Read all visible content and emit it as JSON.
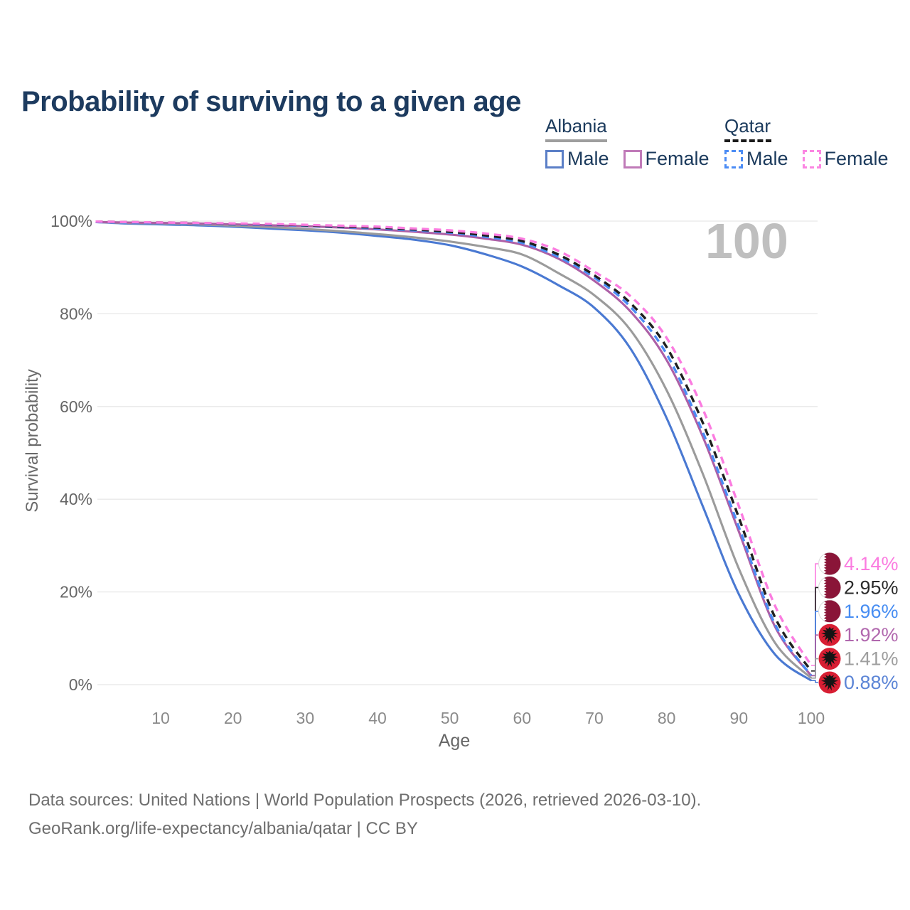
{
  "title": "Probability of surviving to a given age",
  "legend": {
    "groups": [
      {
        "label": "Albania",
        "line_style": "solid",
        "underline_color": "#9e9e9e",
        "underline_width": 87,
        "items": [
          {
            "label": "Male",
            "color": "#5b7fc7",
            "dash": false
          },
          {
            "label": "Female",
            "color": "#c07ab8",
            "dash": false
          }
        ]
      },
      {
        "label": "Qatar",
        "line_style": "dashed",
        "underline_color": "#1a1a1a",
        "underline_width": 66,
        "items": [
          {
            "label": "Male",
            "color": "#4b8cf5",
            "dash": true
          },
          {
            "label": "Female",
            "color": "#fb86e2",
            "dash": true
          }
        ]
      }
    ]
  },
  "chart_data": {
    "type": "line",
    "title": "Probability of surviving to a given age",
    "xlabel": "Age",
    "ylabel": "Survival probability",
    "xlim": [
      1,
      100
    ],
    "ylim": [
      0,
      100
    ],
    "grid": "horizontal",
    "legend_position": "top-right",
    "watermark": "100",
    "xticks": [
      {
        "v": 10,
        "label": "10"
      },
      {
        "v": 20,
        "label": "20"
      },
      {
        "v": 30,
        "label": "30"
      },
      {
        "v": 40,
        "label": "40"
      },
      {
        "v": 50,
        "label": "50"
      },
      {
        "v": 60,
        "label": "60"
      },
      {
        "v": 70,
        "label": "70"
      },
      {
        "v": 80,
        "label": "80"
      },
      {
        "v": 90,
        "label": "90"
      },
      {
        "v": 100,
        "label": "100"
      }
    ],
    "yticks": [
      {
        "v": 0,
        "label": "0%"
      },
      {
        "v": 20,
        "label": "20%"
      },
      {
        "v": 40,
        "label": "40%"
      },
      {
        "v": 60,
        "label": "60%"
      },
      {
        "v": 80,
        "label": "80%"
      },
      {
        "v": 100,
        "label": "100%"
      }
    ],
    "series": [
      {
        "name": "Albania Male",
        "country": "Albania",
        "sex": "Male",
        "style": "solid",
        "color": "#4a79d2",
        "flag": "albania",
        "end_label": "0.88%",
        "label_color": "#5c85d6",
        "points": [
          [
            1,
            99.8
          ],
          [
            5,
            99.5
          ],
          [
            10,
            99.3
          ],
          [
            15,
            99.1
          ],
          [
            20,
            98.8
          ],
          [
            25,
            98.4
          ],
          [
            30,
            98.0
          ],
          [
            35,
            97.5
          ],
          [
            40,
            96.8
          ],
          [
            45,
            96.0
          ],
          [
            50,
            94.8
          ],
          [
            55,
            92.8
          ],
          [
            60,
            90.2
          ],
          [
            65,
            86.2
          ],
          [
            70,
            81.3
          ],
          [
            75,
            72.5
          ],
          [
            80,
            57.5
          ],
          [
            85,
            38.5
          ],
          [
            90,
            19.5
          ],
          [
            95,
            6.5
          ],
          [
            100,
            0.88
          ]
        ]
      },
      {
        "name": "Albania",
        "country": "Albania",
        "sex": "All",
        "style": "solid",
        "color": "#9b9b9b",
        "flag": "albania",
        "end_label": "1.41%",
        "label_color": "#9e9e9e",
        "points": [
          [
            1,
            99.8
          ],
          [
            5,
            99.6
          ],
          [
            10,
            99.5
          ],
          [
            15,
            99.3
          ],
          [
            20,
            99.0
          ],
          [
            25,
            98.7
          ],
          [
            30,
            98.3
          ],
          [
            35,
            97.8
          ],
          [
            40,
            97.2
          ],
          [
            45,
            96.5
          ],
          [
            50,
            95.6
          ],
          [
            55,
            94.4
          ],
          [
            60,
            92.8
          ],
          [
            65,
            88.8
          ],
          [
            70,
            84.0
          ],
          [
            75,
            76.5
          ],
          [
            80,
            63.5
          ],
          [
            85,
            45.5
          ],
          [
            90,
            25.0
          ],
          [
            95,
            9.0
          ],
          [
            100,
            1.41
          ]
        ]
      },
      {
        "name": "Albania Female",
        "country": "Albania",
        "sex": "Female",
        "style": "solid",
        "color": "#ad5fa6",
        "flag": "albania",
        "end_label": "1.92%",
        "label_color": "#b168ae",
        "points": [
          [
            1,
            99.8
          ],
          [
            5,
            99.7
          ],
          [
            10,
            99.6
          ],
          [
            15,
            99.5
          ],
          [
            20,
            99.3
          ],
          [
            25,
            99.1
          ],
          [
            30,
            98.9
          ],
          [
            35,
            98.6
          ],
          [
            40,
            98.2
          ],
          [
            45,
            97.7
          ],
          [
            50,
            97.1
          ],
          [
            55,
            96.2
          ],
          [
            60,
            94.9
          ],
          [
            65,
            91.9
          ],
          [
            70,
            87.1
          ],
          [
            75,
            80.5
          ],
          [
            80,
            70.0
          ],
          [
            85,
            53.5
          ],
          [
            90,
            33.0
          ],
          [
            95,
            12.5
          ],
          [
            100,
            1.92
          ]
        ]
      },
      {
        "name": "Qatar Male",
        "country": "Qatar",
        "sex": "Male",
        "style": "dashed",
        "color": "#4b8cf5",
        "flag": "qatar",
        "end_label": "1.96%",
        "label_color": "#478df2",
        "points": [
          [
            1,
            99.8
          ],
          [
            5,
            99.7
          ],
          [
            10,
            99.6
          ],
          [
            15,
            99.5
          ],
          [
            20,
            99.3
          ],
          [
            25,
            99.2
          ],
          [
            30,
            99.0
          ],
          [
            35,
            98.7
          ],
          [
            40,
            98.4
          ],
          [
            45,
            98.0
          ],
          [
            50,
            97.5
          ],
          [
            55,
            96.6
          ],
          [
            60,
            95.3
          ],
          [
            65,
            92.3
          ],
          [
            70,
            87.8
          ],
          [
            75,
            81.5
          ],
          [
            80,
            71.3
          ],
          [
            85,
            54.5
          ],
          [
            90,
            34.0
          ],
          [
            95,
            13.0
          ],
          [
            100,
            1.96
          ]
        ]
      },
      {
        "name": "Qatar",
        "country": "Qatar",
        "sex": "All",
        "style": "dashed",
        "color": "#1f1f1f",
        "flag": "qatar",
        "end_label": "2.95%",
        "label_color": "#2b2b2b",
        "points": [
          [
            1,
            99.9
          ],
          [
            5,
            99.8
          ],
          [
            10,
            99.7
          ],
          [
            15,
            99.6
          ],
          [
            20,
            99.4
          ],
          [
            25,
            99.3
          ],
          [
            30,
            99.1
          ],
          [
            35,
            98.8
          ],
          [
            40,
            98.6
          ],
          [
            45,
            98.2
          ],
          [
            50,
            97.7
          ],
          [
            55,
            96.9
          ],
          [
            60,
            95.7
          ],
          [
            65,
            92.8
          ],
          [
            70,
            88.3
          ],
          [
            75,
            82.3
          ],
          [
            80,
            72.8
          ],
          [
            85,
            56.5
          ],
          [
            90,
            36.0
          ],
          [
            95,
            14.5
          ],
          [
            100,
            2.95
          ]
        ]
      },
      {
        "name": "Qatar Female",
        "country": "Qatar",
        "sex": "Female",
        "style": "dashed",
        "color": "#fb7ce0",
        "flag": "qatar",
        "end_label": "4.14%",
        "label_color": "#fb7ce0",
        "points": [
          [
            1,
            99.9
          ],
          [
            5,
            99.8
          ],
          [
            10,
            99.7
          ],
          [
            15,
            99.6
          ],
          [
            20,
            99.5
          ],
          [
            25,
            99.4
          ],
          [
            30,
            99.2
          ],
          [
            35,
            99.0
          ],
          [
            40,
            98.8
          ],
          [
            45,
            98.4
          ],
          [
            50,
            98.0
          ],
          [
            55,
            97.3
          ],
          [
            60,
            96.2
          ],
          [
            65,
            93.6
          ],
          [
            70,
            89.1
          ],
          [
            75,
            83.8
          ],
          [
            80,
            74.8
          ],
          [
            85,
            59.5
          ],
          [
            90,
            38.5
          ],
          [
            95,
            17.0
          ],
          [
            100,
            4.14
          ]
        ]
      }
    ],
    "flag_colors": {
      "qatar_maroon": "#8a1538",
      "albania_red": "#d81e33",
      "eagle_black": "#141414"
    }
  },
  "footer": {
    "line1": "Data sources: United Nations | World Population Prospects (2026, retrieved 2026-03-10).",
    "line2": "GeoRank.org/life-expectancy/albania/qatar | CC BY"
  }
}
